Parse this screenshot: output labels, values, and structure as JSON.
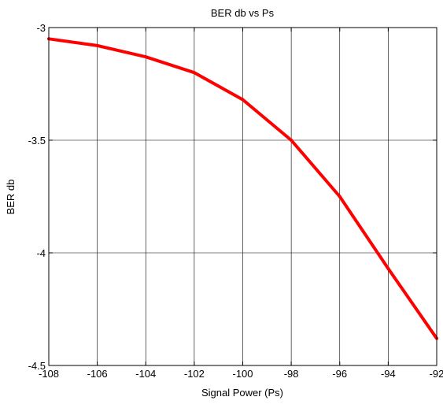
{
  "chart_data": {
    "type": "line",
    "title": "BER db vs Ps",
    "xlabel": "Signal Power (Ps)",
    "ylabel": "BER db",
    "xlim": [
      -108,
      -92
    ],
    "ylim": [
      -4.5,
      -3
    ],
    "x_ticks": [
      -108,
      -106,
      -104,
      -102,
      -100,
      -98,
      -96,
      -94,
      -92
    ],
    "y_ticks": [
      -3,
      -3.5,
      -4,
      -4.5
    ],
    "x_tick_labels": [
      "-108",
      "-106",
      "-104",
      "-102",
      "-100",
      "-98",
      "-96",
      "-94",
      "-92"
    ],
    "y_tick_labels": [
      "-3",
      "-3.5",
      "-4",
      "-4.5"
    ],
    "grid": true,
    "series": [
      {
        "color": "#ff0000",
        "x": [
          -108,
          -106,
          -104,
          -102,
          -100,
          -98,
          -96,
          -94,
          -92
        ],
        "y": [
          -3.05,
          -3.08,
          -3.13,
          -3.2,
          -3.32,
          -3.5,
          -3.75,
          -4.07,
          -4.38
        ]
      }
    ]
  }
}
